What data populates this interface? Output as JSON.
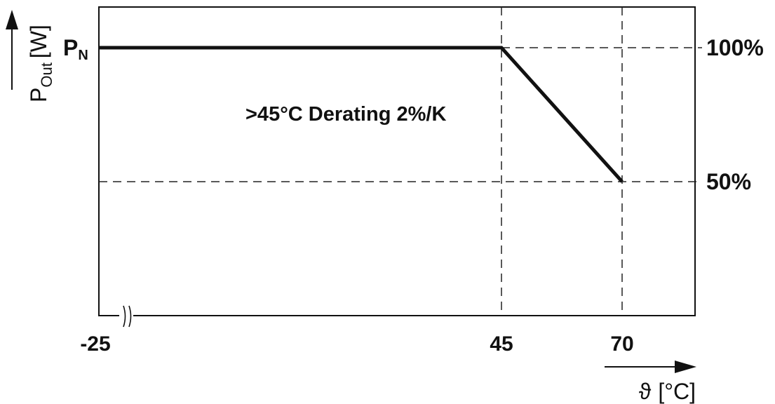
{
  "chart_data": {
    "type": "line",
    "title": "",
    "annotation": ">45°C Derating 2%/K",
    "xlabel": {
      "symbol": "ϑ",
      "unit": "[°C]"
    },
    "ylabel": {
      "main": "P",
      "sub": "Out",
      "unit": "[W]"
    },
    "x_tick_labels": [
      "-25",
      "45",
      "70"
    ],
    "x_ticks": [
      -25,
      45,
      70
    ],
    "xlim": [
      -25,
      80
    ],
    "ylim": [
      0,
      100
    ],
    "x_axis_break_at": -25,
    "left_label": {
      "main": "P",
      "sub": "N"
    },
    "right_tick_labels": [
      "100%",
      "50%"
    ],
    "right_ticks": [
      100,
      50
    ],
    "series": [
      {
        "x": [
          -25,
          45,
          70
        ],
        "y": [
          100,
          100,
          50
        ]
      }
    ],
    "reference_lines": {
      "vertical": [
        45,
        70
      ],
      "horizontal": [
        100,
        50
      ]
    },
    "grid": false,
    "colors": {
      "line": "#111111",
      "frame": "#111111",
      "dashed": "#222222"
    }
  }
}
